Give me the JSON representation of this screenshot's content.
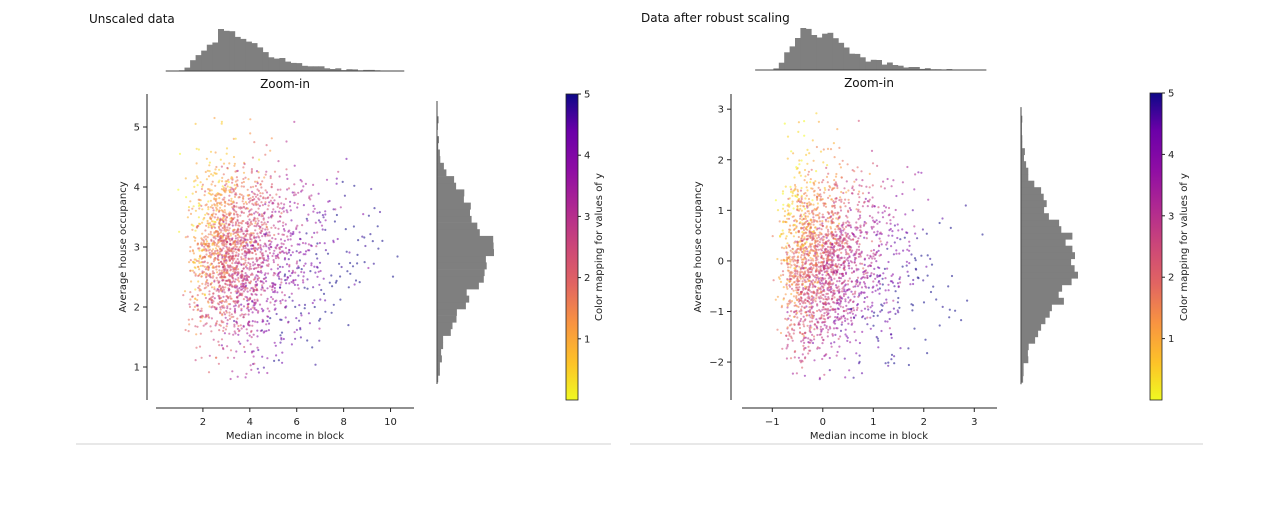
{
  "chart_data": [
    {
      "type": "scatter",
      "title": "Unscaled data",
      "subtitle": "Zoom-in",
      "xlabel": "Median income in block",
      "ylabel": "Average house occupancy",
      "xlim": [
        0.0,
        11.0
      ],
      "ylim": [
        0.45,
        5.55
      ],
      "xticks": [
        2,
        4,
        6,
        8,
        10
      ],
      "yticks": [
        1,
        2,
        3,
        4,
        5
      ],
      "colorbar": {
        "label": "Color mapping for values of y",
        "range": [
          0,
          5
        ],
        "ticks": [
          1,
          2,
          3,
          4,
          5
        ],
        "colormap": "plasma_r"
      },
      "marginal_x_histogram": "Median income in block distribution (top)",
      "marginal_y_histogram": "Average house occupancy distribution (right)",
      "point_cloud": {
        "x_mean": 3.7,
        "x_sd": 1.8,
        "x_min": 0.5,
        "x_max": 10.5,
        "y_mean": 2.9,
        "y_sd": 0.75,
        "y_min": 0.75,
        "y_max": 5.4,
        "n_points_drawn": 2200
      },
      "grid": false
    },
    {
      "type": "scatter",
      "title": "Data after robust scaling",
      "subtitle": "Zoom-in",
      "xlabel": "Median income in block",
      "ylabel": "Average house occupancy",
      "xlim": [
        -1.6,
        3.45
      ],
      "ylim": [
        -2.75,
        3.3
      ],
      "xticks": [
        -1,
        0,
        1,
        2,
        3
      ],
      "yticks": [
        -2,
        -1,
        0,
        1,
        2,
        3
      ],
      "colorbar": {
        "label": "Color mapping for values of y",
        "range": [
          0,
          5
        ],
        "ticks": [
          1,
          2,
          3,
          4,
          5
        ],
        "colormap": "plasma_r"
      },
      "marginal_x_histogram": "Median income in block distribution (top)",
      "marginal_y_histogram": "Average house occupancy distribution (right)",
      "point_cloud": {
        "x_mean": 0.1,
        "x_sd": 0.85,
        "x_min": -1.3,
        "x_max": 3.2,
        "y_mean": -0.05,
        "y_sd": 0.9,
        "y_min": -2.4,
        "y_max": 3.0,
        "n_points_drawn": 2200
      },
      "grid": false
    }
  ]
}
